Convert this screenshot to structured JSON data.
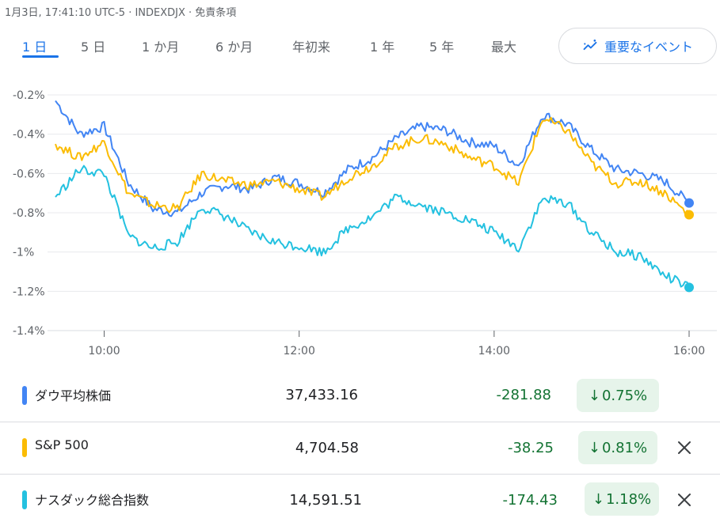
{
  "info_text": "1月3日, 17:41:10 UTC-5 · INDEXDJX · 免責条項",
  "tabs": [
    {
      "label": "1 日",
      "active": true
    },
    {
      "label": "5 日",
      "active": false
    },
    {
      "label": "1 か月",
      "active": false
    },
    {
      "label": "6 か月",
      "active": false
    },
    {
      "label": "年初来",
      "active": false
    },
    {
      "label": "1 年",
      "active": false
    },
    {
      "label": "5 年",
      "active": false
    },
    {
      "label": "最大",
      "active": false
    }
  ],
  "events_button": {
    "label": "重要なイベント",
    "icon": "sparkline-icon"
  },
  "rows": [
    {
      "name": "ダウ平均株価",
      "price": "37,433.16",
      "change": "-281.88",
      "percent": "0.75%",
      "color": "#4285f4",
      "removable": false
    },
    {
      "name": "S&P 500",
      "price": "4,704.58",
      "change": "-38.25",
      "percent": "0.81%",
      "color": "#fbbc04",
      "removable": true
    },
    {
      "name": "ナスダック総合指数",
      "price": "14,591.51",
      "change": "-174.43",
      "percent": "1.18%",
      "color": "#24c1e0",
      "removable": true
    }
  ],
  "chart_data": {
    "type": "line",
    "x_unit": "time",
    "x": [
      "09:30",
      "09:45",
      "10:00",
      "10:15",
      "10:30",
      "10:45",
      "11:00",
      "11:15",
      "11:30",
      "11:45",
      "12:00",
      "12:15",
      "12:30",
      "12:45",
      "13:00",
      "13:15",
      "13:30",
      "13:45",
      "14:00",
      "14:15",
      "14:30",
      "14:45",
      "15:00",
      "15:15",
      "15:30",
      "15:45",
      "16:00"
    ],
    "xticks": [
      "10:00",
      "12:00",
      "14:00",
      "16:00"
    ],
    "yticks": [
      "-0.2%",
      "-0.4%",
      "-0.6%",
      "-0.8%",
      "-1%",
      "-1.2%",
      "-1.4%"
    ],
    "ylim": [
      -1.4,
      -0.2
    ],
    "grid": true,
    "series": [
      {
        "name": "ダウ平均株価",
        "color": "#4285f4",
        "values": [
          -0.23,
          -0.4,
          -0.36,
          -0.65,
          -0.78,
          -0.8,
          -0.7,
          -0.66,
          -0.68,
          -0.62,
          -0.65,
          -0.7,
          -0.58,
          -0.52,
          -0.42,
          -0.36,
          -0.38,
          -0.44,
          -0.46,
          -0.56,
          -0.3,
          -0.35,
          -0.48,
          -0.58,
          -0.6,
          -0.64,
          -0.75
        ]
      },
      {
        "name": "S&P 500",
        "color": "#fbbc04",
        "values": [
          -0.45,
          -0.52,
          -0.44,
          -0.7,
          -0.76,
          -0.78,
          -0.6,
          -0.64,
          -0.66,
          -0.64,
          -0.68,
          -0.72,
          -0.62,
          -0.56,
          -0.46,
          -0.42,
          -0.45,
          -0.52,
          -0.56,
          -0.65,
          -0.32,
          -0.38,
          -0.55,
          -0.65,
          -0.64,
          -0.7,
          -0.81
        ]
      },
      {
        "name": "ナスダック総合指数",
        "color": "#24c1e0",
        "values": [
          -0.72,
          -0.58,
          -0.6,
          -0.92,
          -0.98,
          -0.95,
          -0.77,
          -0.82,
          -0.9,
          -0.95,
          -0.97,
          -1.0,
          -0.88,
          -0.82,
          -0.72,
          -0.76,
          -0.8,
          -0.84,
          -0.9,
          -0.98,
          -0.73,
          -0.75,
          -0.9,
          -1.0,
          -1.02,
          -1.12,
          -1.18
        ]
      }
    ]
  }
}
